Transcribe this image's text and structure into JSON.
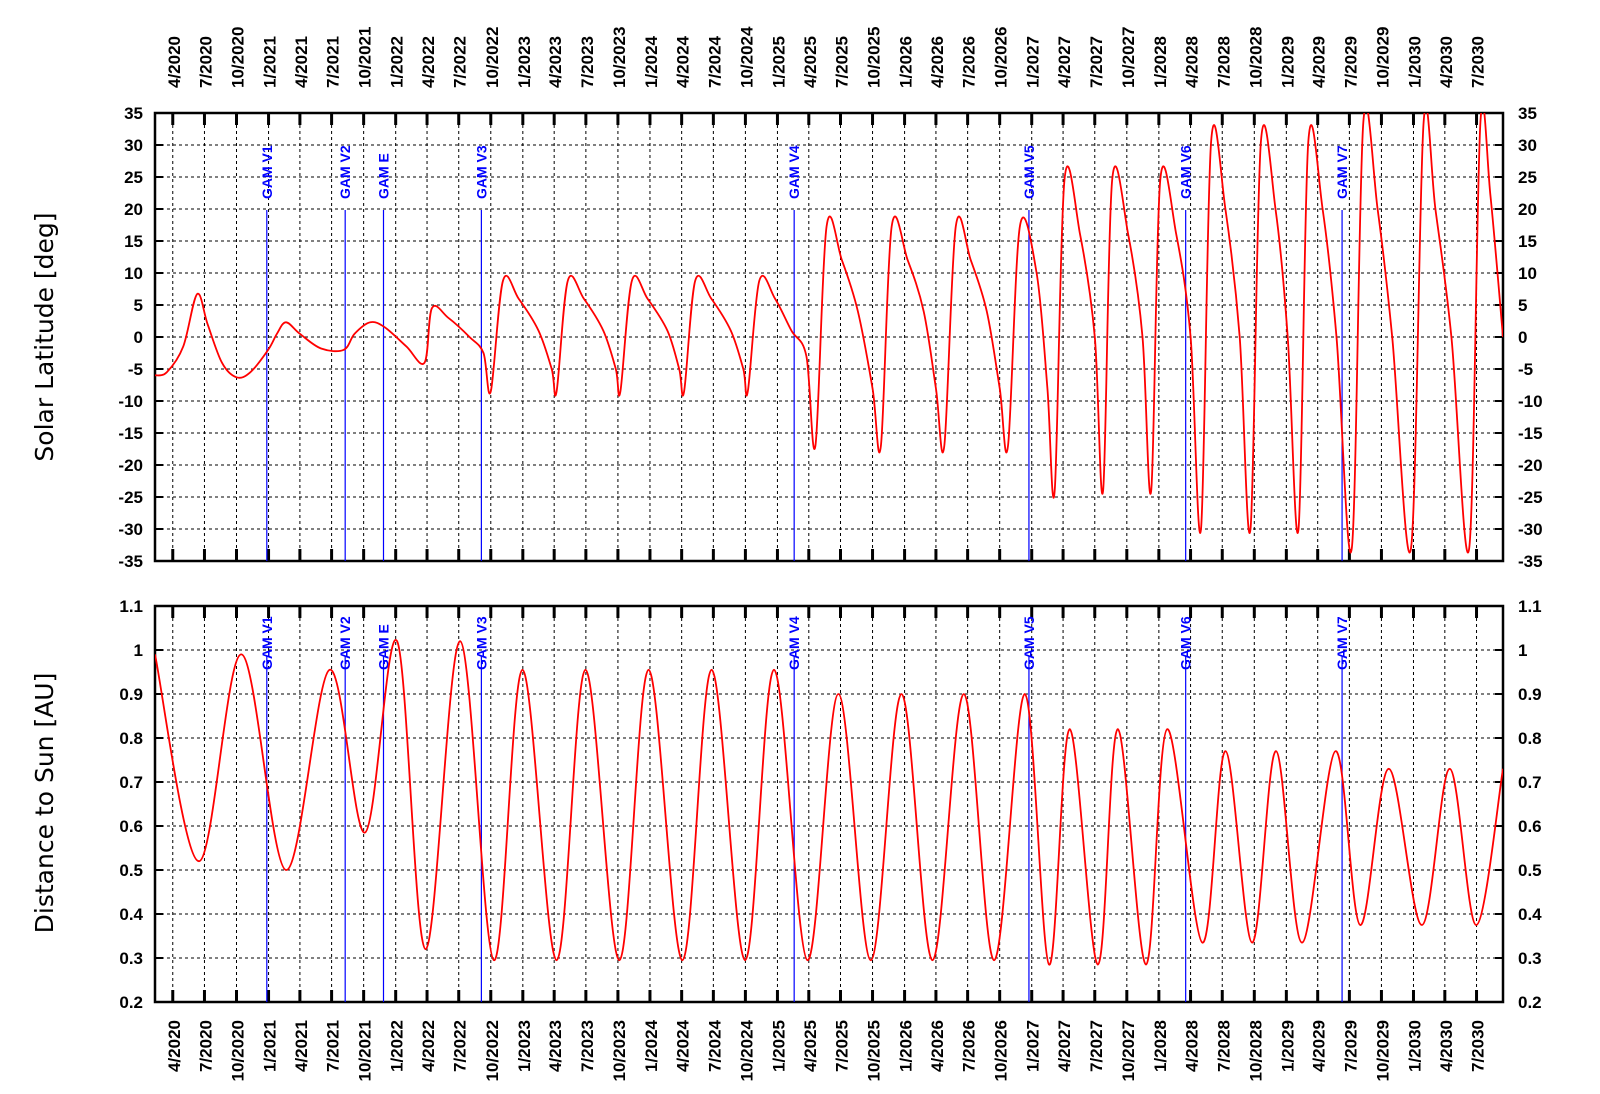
{
  "chart_data": [
    {
      "type": "line",
      "title": "",
      "xlabel": "",
      "ylabel": "Solar Latitude [deg]",
      "ylim": [
        -35,
        35
      ],
      "yticks": [
        35,
        30,
        25,
        20,
        15,
        10,
        5,
        0,
        -5,
        -10,
        -15,
        -20,
        -25,
        -30,
        -35
      ],
      "grid": true,
      "line_color": "#ff0000",
      "series": [
        {
          "values_description_units": "deg",
          "points": [
            {
              "x": "2020-02-10",
              "y": -6.0
            },
            {
              "x": "2020-03-15",
              "y": -5.5
            },
            {
              "x": "2020-05-01",
              "y": -1.5
            },
            {
              "x": "2020-06-10",
              "y": 6.7
            },
            {
              "x": "2020-07-10",
              "y": 2.0
            },
            {
              "x": "2020-08-20",
              "y": -4.0
            },
            {
              "x": "2020-10-01",
              "y": -6.3
            },
            {
              "x": "2020-11-10",
              "y": -5.5
            },
            {
              "x": "2020-12-31",
              "y": -2.0
            },
            {
              "x": "2021-01-25",
              "y": 0.5
            },
            {
              "x": "2021-02-20",
              "y": 2.3
            },
            {
              "x": "2021-04-01",
              "y": 0.5
            },
            {
              "x": "2021-06-01",
              "y": -1.8
            },
            {
              "x": "2021-08-05",
              "y": -2.0
            },
            {
              "x": "2021-09-05",
              "y": 0.5
            },
            {
              "x": "2021-10-20",
              "y": 2.3
            },
            {
              "x": "2021-12-01",
              "y": 1.5
            },
            {
              "x": "2022-02-01",
              "y": -1.5
            },
            {
              "x": "2022-03-25",
              "y": -4.0
            },
            {
              "x": "2022-04-15",
              "y": 4.5
            },
            {
              "x": "2022-06-01",
              "y": 3.0
            },
            {
              "x": "2022-08-01",
              "y": 0.0
            },
            {
              "x": "2022-09-10",
              "y": -2.5
            },
            {
              "x": "2022-10-01",
              "y": -8.5
            },
            {
              "x": "2022-11-05",
              "y": 8.8
            },
            {
              "x": "2022-12-20",
              "y": 6.0
            },
            {
              "x": "2023-02-15",
              "y": 1.0
            },
            {
              "x": "2023-03-25",
              "y": -5.0
            },
            {
              "x": "2023-04-08",
              "y": -8.5
            },
            {
              "x": "2023-05-10",
              "y": 8.8
            },
            {
              "x": "2023-06-25",
              "y": 6.0
            },
            {
              "x": "2023-08-20",
              "y": 1.0
            },
            {
              "x": "2023-09-25",
              "y": -5.0
            },
            {
              "x": "2023-10-08",
              "y": -8.5
            },
            {
              "x": "2023-11-10",
              "y": 8.8
            },
            {
              "x": "2023-12-25",
              "y": 6.0
            },
            {
              "x": "2024-02-20",
              "y": 1.0
            },
            {
              "x": "2024-03-25",
              "y": -5.0
            },
            {
              "x": "2024-04-08",
              "y": -8.5
            },
            {
              "x": "2024-05-10",
              "y": 8.8
            },
            {
              "x": "2024-06-25",
              "y": 6.0
            },
            {
              "x": "2024-08-20",
              "y": 1.0
            },
            {
              "x": "2024-09-25",
              "y": -5.0
            },
            {
              "x": "2024-10-08",
              "y": -8.5
            },
            {
              "x": "2024-11-10",
              "y": 8.8
            },
            {
              "x": "2024-12-25",
              "y": 6.0
            },
            {
              "x": "2025-02-10",
              "y": 1.0
            },
            {
              "x": "2025-03-25",
              "y": -3.0
            },
            {
              "x": "2025-04-20",
              "y": -17.0
            },
            {
              "x": "2025-05-22",
              "y": 17.3
            },
            {
              "x": "2025-07-05",
              "y": 12.0
            },
            {
              "x": "2025-08-20",
              "y": 4.0
            },
            {
              "x": "2025-10-01",
              "y": -8.0
            },
            {
              "x": "2025-10-25",
              "y": -17.0
            },
            {
              "x": "2025-11-25",
              "y": 17.3
            },
            {
              "x": "2026-01-10",
              "y": 12.0
            },
            {
              "x": "2026-02-25",
              "y": 4.0
            },
            {
              "x": "2026-04-01",
              "y": -8.0
            },
            {
              "x": "2026-04-25",
              "y": -17.0
            },
            {
              "x": "2026-05-28",
              "y": 17.3
            },
            {
              "x": "2026-07-10",
              "y": 12.0
            },
            {
              "x": "2026-08-25",
              "y": 4.0
            },
            {
              "x": "2026-10-01",
              "y": -8.0
            },
            {
              "x": "2026-10-25",
              "y": -17.0
            },
            {
              "x": "2026-11-28",
              "y": 17.3
            },
            {
              "x": "2027-01-15",
              "y": 10.0
            },
            {
              "x": "2027-02-15",
              "y": -8.0
            },
            {
              "x": "2027-03-08",
              "y": -24.0
            },
            {
              "x": "2027-04-05",
              "y": 24.6
            },
            {
              "x": "2027-05-20",
              "y": 16.0
            },
            {
              "x": "2027-07-01",
              "y": 0.0
            },
            {
              "x": "2027-07-25",
              "y": -24.0
            },
            {
              "x": "2027-08-20",
              "y": 24.6
            },
            {
              "x": "2027-10-05",
              "y": 16.0
            },
            {
              "x": "2027-11-15",
              "y": 0.0
            },
            {
              "x": "2027-12-10",
              "y": -24.0
            },
            {
              "x": "2028-01-05",
              "y": 24.6
            },
            {
              "x": "2028-02-20",
              "y": 16.0
            },
            {
              "x": "2028-04-01",
              "y": 0.0
            },
            {
              "x": "2028-05-01",
              "y": -30.0
            },
            {
              "x": "2028-05-30",
              "y": 30.5
            },
            {
              "x": "2028-07-10",
              "y": 20.0
            },
            {
              "x": "2028-08-20",
              "y": 0.0
            },
            {
              "x": "2028-09-20",
              "y": -30.0
            },
            {
              "x": "2028-10-20",
              "y": 30.5
            },
            {
              "x": "2028-12-01",
              "y": 20.0
            },
            {
              "x": "2029-01-05",
              "y": 0.0
            },
            {
              "x": "2029-02-05",
              "y": -30.0
            },
            {
              "x": "2029-03-05",
              "y": 30.5
            },
            {
              "x": "2029-04-15",
              "y": 20.0
            },
            {
              "x": "2029-05-25",
              "y": 0.0
            },
            {
              "x": "2029-07-08",
              "y": -33.0
            },
            {
              "x": "2029-08-10",
              "y": 33.5
            },
            {
              "x": "2029-09-20",
              "y": 20.0
            },
            {
              "x": "2029-11-01",
              "y": 0.0
            },
            {
              "x": "2029-12-25",
              "y": -33.0
            },
            {
              "x": "2030-01-30",
              "y": 33.5
            },
            {
              "x": "2030-03-05",
              "y": 20.0
            },
            {
              "x": "2030-04-20",
              "y": 0.0
            },
            {
              "x": "2030-06-10",
              "y": -33.0
            },
            {
              "x": "2030-07-12",
              "y": 33.5
            },
            {
              "x": "2030-08-10",
              "y": 22.0
            },
            {
              "x": "2030-09-15",
              "y": 0.0
            }
          ]
        }
      ],
      "markers": [
        {
          "label": "GAM V1",
          "x": "2020-12-27"
        },
        {
          "label": "GAM V2",
          "x": "2021-08-09"
        },
        {
          "label": "GAM E",
          "x": "2021-11-27"
        },
        {
          "label": "GAM V3",
          "x": "2022-09-04"
        },
        {
          "label": "GAM V4",
          "x": "2025-02-18"
        },
        {
          "label": "GAM V5",
          "x": "2026-12-24"
        },
        {
          "label": "GAM V6",
          "x": "2028-03-18"
        },
        {
          "label": "GAM V7",
          "x": "2029-06-10"
        }
      ]
    },
    {
      "type": "line",
      "title": "",
      "xlabel": "",
      "ylabel": "Distance to Sun [AU]",
      "ylim": [
        0.2,
        1.1
      ],
      "yticks": [
        "1.1",
        "1",
        "0.9",
        "0.8",
        "0.7",
        "0.6",
        "0.5",
        "0.4",
        "0.3",
        "0.2"
      ],
      "grid": true,
      "line_color": "#ff0000",
      "series": [
        {
          "values_description_units": "AU",
          "points": [
            {
              "x": "2020-02-10",
              "y": 0.99
            },
            {
              "x": "2020-06-15",
              "y": 0.52
            },
            {
              "x": "2020-10-15",
              "y": 0.99
            },
            {
              "x": "2021-02-20",
              "y": 0.5
            },
            {
              "x": "2021-06-25",
              "y": 0.955
            },
            {
              "x": "2021-10-05",
              "y": 0.585
            },
            {
              "x": "2022-01-05",
              "y": 1.02
            },
            {
              "x": "2022-03-28",
              "y": 0.32
            },
            {
              "x": "2022-07-05",
              "y": 1.02
            },
            {
              "x": "2022-10-10",
              "y": 0.295
            },
            {
              "x": "2022-12-31",
              "y": 0.955
            },
            {
              "x": "2023-04-08",
              "y": 0.295
            },
            {
              "x": "2023-06-30",
              "y": 0.955
            },
            {
              "x": "2023-10-05",
              "y": 0.295
            },
            {
              "x": "2023-12-28",
              "y": 0.955
            },
            {
              "x": "2024-04-03",
              "y": 0.295
            },
            {
              "x": "2024-06-26",
              "y": 0.955
            },
            {
              "x": "2024-09-30",
              "y": 0.295
            },
            {
              "x": "2024-12-22",
              "y": 0.955
            },
            {
              "x": "2025-03-28",
              "y": 0.295
            },
            {
              "x": "2025-06-25",
              "y": 0.9
            },
            {
              "x": "2025-09-26",
              "y": 0.295
            },
            {
              "x": "2025-12-23",
              "y": 0.9
            },
            {
              "x": "2026-03-22",
              "y": 0.295
            },
            {
              "x": "2026-06-20",
              "y": 0.9
            },
            {
              "x": "2026-09-15",
              "y": 0.295
            },
            {
              "x": "2026-12-12",
              "y": 0.9
            },
            {
              "x": "2027-02-20",
              "y": 0.285
            },
            {
              "x": "2027-04-20",
              "y": 0.82
            },
            {
              "x": "2027-07-10",
              "y": 0.285
            },
            {
              "x": "2027-09-05",
              "y": 0.82
            },
            {
              "x": "2027-11-25",
              "y": 0.285
            },
            {
              "x": "2028-01-25",
              "y": 0.82
            },
            {
              "x": "2028-05-05",
              "y": 0.335
            },
            {
              "x": "2028-07-10",
              "y": 0.77
            },
            {
              "x": "2028-09-25",
              "y": 0.335
            },
            {
              "x": "2028-12-02",
              "y": 0.77
            },
            {
              "x": "2029-02-15",
              "y": 0.335
            },
            {
              "x": "2029-05-22",
              "y": 0.77
            },
            {
              "x": "2029-08-01",
              "y": 0.375
            },
            {
              "x": "2029-10-22",
              "y": 0.73
            },
            {
              "x": "2030-01-25",
              "y": 0.375
            },
            {
              "x": "2030-04-15",
              "y": 0.73
            },
            {
              "x": "2030-06-30",
              "y": 0.375
            },
            {
              "x": "2030-09-15",
              "y": 0.73
            }
          ]
        }
      ],
      "markers": [
        {
          "label": "GAM V1",
          "x": "2020-12-27"
        },
        {
          "label": "GAM V2",
          "x": "2021-08-09"
        },
        {
          "label": "GAM E",
          "x": "2021-11-27"
        },
        {
          "label": "GAM V3",
          "x": "2022-09-04"
        },
        {
          "label": "GAM V4",
          "x": "2025-02-18"
        },
        {
          "label": "GAM V5",
          "x": "2026-12-24"
        },
        {
          "label": "GAM V6",
          "x": "2028-03-18"
        },
        {
          "label": "GAM V7",
          "x": "2029-06-10"
        }
      ]
    }
  ],
  "x_axis": {
    "tick_labels": [
      "4/2020",
      "7/2020",
      "10/2020",
      "1/2021",
      "4/2021",
      "7/2021",
      "10/2021",
      "1/2022",
      "4/2022",
      "7/2022",
      "10/2022",
      "1/2023",
      "4/2023",
      "7/2023",
      "10/2023",
      "1/2024",
      "4/2024",
      "7/2024",
      "10/2024",
      "1/2025",
      "4/2025",
      "7/2025",
      "10/2025",
      "1/2026",
      "4/2026",
      "7/2026",
      "10/2026",
      "1/2027",
      "4/2027",
      "7/2027",
      "10/2027",
      "1/2028",
      "4/2028",
      "7/2028",
      "10/2028",
      "1/2029",
      "4/2029",
      "7/2029",
      "10/2029",
      "1/2030",
      "4/2030",
      "7/2030"
    ],
    "range": [
      "2020-02-10",
      "2030-09-15"
    ]
  },
  "colors": {
    "line": "#ff0000",
    "marker": "#0000ff",
    "grid": "#000000",
    "axis": "#000000"
  }
}
